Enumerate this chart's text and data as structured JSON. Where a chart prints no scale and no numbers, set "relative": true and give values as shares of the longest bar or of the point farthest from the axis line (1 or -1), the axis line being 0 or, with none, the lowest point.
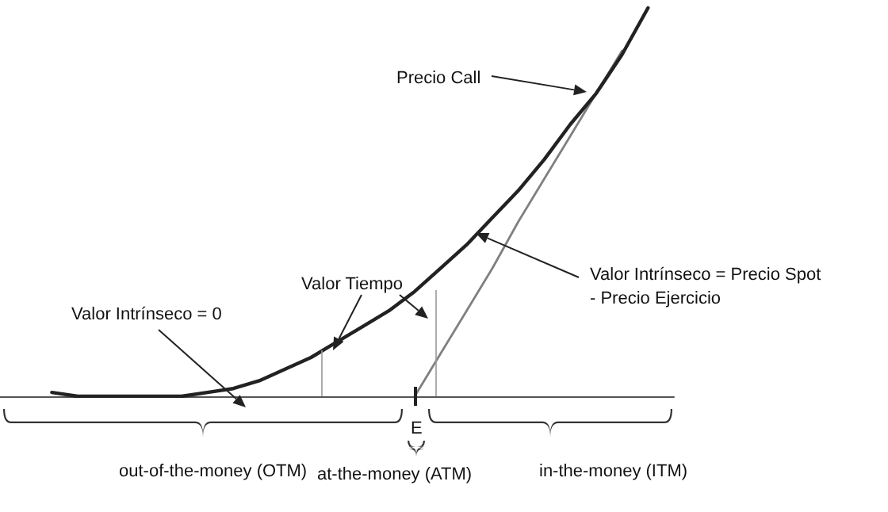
{
  "chart_data": {
    "type": "line",
    "relative": true,
    "categories": [
      null,
      null,
      null,
      null,
      null,
      null,
      null,
      null,
      null,
      null,
      null,
      null,
      null,
      null,
      null,
      null,
      null,
      null,
      null,
      null,
      null,
      null,
      null,
      null,
      null,
      null,
      null
    ],
    "tick_labels": false,
    "series": [
      {
        "color": "#222222",
        "values": [
          null,
          null,
          0.01,
          0,
          0,
          0,
          0,
          0,
          0.01,
          0.02,
          0.04,
          0.07,
          0.1,
          0.14,
          0.18,
          0.22,
          0.27,
          0.33,
          0.39,
          0.46,
          0.53,
          0.61,
          0.7,
          0.78,
          0.88,
          1,
          null
        ]
      },
      {
        "color": "#808080",
        "values": [
          null,
          null,
          null,
          null,
          null,
          null,
          null,
          null,
          null,
          null,
          null,
          null,
          null,
          null,
          null,
          null,
          0,
          0.11,
          0.22,
          0.33,
          0.45,
          0.56,
          0.67,
          0.78,
          0.89,
          null,
          null
        ]
      }
    ],
    "annotations": [
      "Precio Call",
      "Valor Tiempo",
      "Valor Intrínseco = 0",
      "Valor Intrínseco = Precio Spot\n- Precio Ejercicio",
      "E",
      "out-of-the-money (OTM)",
      "at-the-money (ATM)",
      "in-the-money (ITM)"
    ]
  }
}
